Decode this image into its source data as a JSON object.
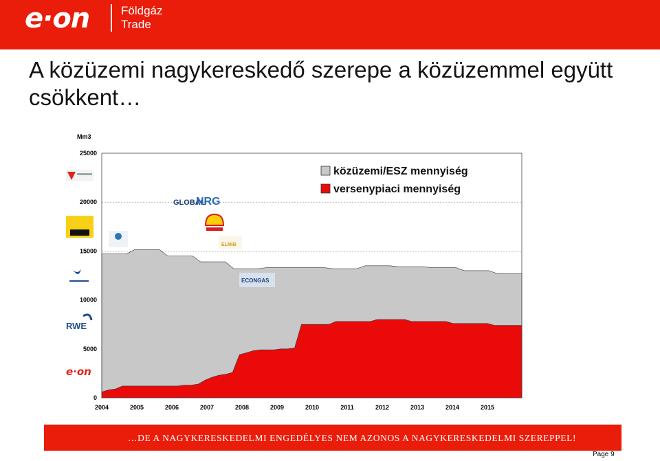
{
  "header": {
    "logo_text": "e·on",
    "subtitle_line1": "Földgáz",
    "subtitle_line2": "Trade",
    "color": "#ea1c0a"
  },
  "title": "A közüzemi nagykereskedő szerepe a közüzemmel együtt csökkent…",
  "chart_data": {
    "type": "area",
    "ylabel": "Mm3",
    "ylim": [
      0,
      25000
    ],
    "yticks": [
      "0",
      "5000",
      "10000",
      "15000",
      "20000",
      "25000"
    ],
    "x_labels": [
      "2004",
      "2005",
      "2006",
      "2007",
      "2008",
      "2009",
      "2010",
      "2011",
      "2012",
      "2013",
      "2014",
      "2015"
    ],
    "grid": true,
    "legend_position": "top-right",
    "series": [
      {
        "name": "közüzemi/ESZ mennyiség",
        "color": "#c8c8c8",
        "total_steps": [
          14700,
          14700,
          14700,
          14700,
          15150,
          15150,
          15150,
          15150,
          14500,
          14500,
          14500,
          14500,
          13900,
          13900,
          13900,
          13900,
          13200,
          13200,
          13200,
          13200,
          13300,
          13300,
          13300,
          13300,
          13300,
          13300,
          13300,
          13300,
          13200,
          13200,
          13200,
          13200,
          13500,
          13500,
          13500,
          13500,
          13400,
          13400,
          13400,
          13400,
          13300,
          13300,
          13300,
          13300,
          13000,
          13000,
          13000,
          13000,
          12700,
          12700,
          12700,
          12700
        ]
      },
      {
        "name": "versenypiaci mennyiség",
        "color": "#ea0a0a",
        "values": [
          600,
          800,
          900,
          1200,
          1200,
          1200,
          1200,
          1200,
          1200,
          1200,
          1200,
          1200,
          1300,
          1300,
          1400,
          1800,
          2100,
          2300,
          2400,
          2600,
          4400,
          4600,
          4800,
          4900,
          4900,
          4900,
          5000,
          5000,
          5100,
          7500,
          7500,
          7500,
          7500,
          7500,
          7800,
          7800,
          7800,
          7800,
          7800,
          7800,
          8000,
          8000,
          8000,
          8000,
          8000,
          7800,
          7800,
          7800,
          7800,
          7800,
          7800,
          7600,
          7600,
          7600,
          7600,
          7600,
          7600,
          7400,
          7400,
          7400,
          7400,
          7400
        ]
      }
    ],
    "company_logos": [
      "MOL földgáz",
      "GLOBALNRG",
      "Shell",
      "Eni",
      "émász",
      "ELMIB",
      "ECONGAS",
      "Gaz de France",
      "RWE",
      "e·on"
    ]
  },
  "footer": {
    "banner_text": "…DE A NAGYKERESKEDELMI ENGEDÉLYES NEM AZONOS A NAGYKERESKEDELMI SZEREPPEL!",
    "page_label": "Page 9"
  }
}
